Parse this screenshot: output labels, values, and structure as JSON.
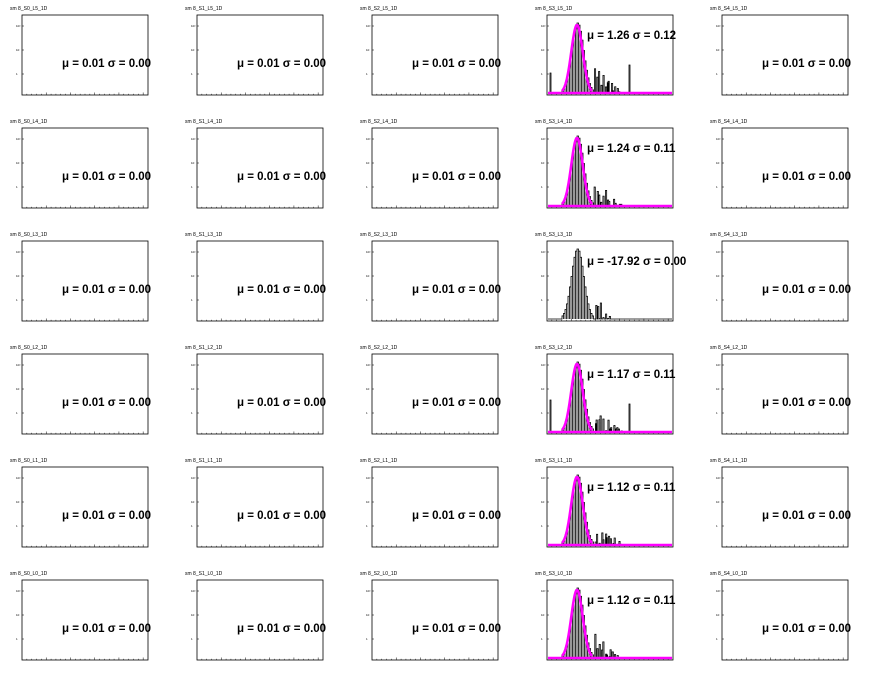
{
  "chart_data": {
    "type": "grid-of-histograms",
    "rows": 6,
    "cols": 5,
    "panels": [
      {
        "title": "sm 8_S0_L5_1D",
        "stat": "μ = 0.01 σ = 0.00",
        "has_data": false
      },
      {
        "title": "sm 8_S1_L5_1D",
        "stat": "μ = 0.01 σ = 0.00",
        "has_data": false
      },
      {
        "title": "sm 8_S2_L5_1D",
        "stat": "μ = 0.01 σ = 0.00",
        "has_data": false
      },
      {
        "title": "sm 8_S3_L5_1D",
        "stat": "μ = 1.26 σ = 0.12",
        "has_data": true,
        "fit": true,
        "variant": 0
      },
      {
        "title": "sm 8_S4_L5_1D",
        "stat": "μ = 0.01 σ = 0.00",
        "has_data": false
      },
      {
        "title": "sm 8_S0_L4_1D",
        "stat": "μ = 0.01 σ = 0.00",
        "has_data": false
      },
      {
        "title": "sm 8_S1_L4_1D",
        "stat": "μ = 0.01 σ = 0.00",
        "has_data": false
      },
      {
        "title": "sm 8_S2_L4_1D",
        "stat": "μ = 0.01 σ = 0.00",
        "has_data": false
      },
      {
        "title": "sm 8_S3_L4_1D",
        "stat": "μ = 1.24 σ = 0.11",
        "has_data": true,
        "fit": true,
        "variant": 1
      },
      {
        "title": "sm 8_S4_L4_1D",
        "stat": "μ = 0.01 σ = 0.00",
        "has_data": false
      },
      {
        "title": "sm 8_S0_L3_1D",
        "stat": "μ = 0.01 σ = 0.00",
        "has_data": false
      },
      {
        "title": "sm 8_S1_L3_1D",
        "stat": "μ = 0.01 σ = 0.00",
        "has_data": false
      },
      {
        "title": "sm 8_S2_L3_1D",
        "stat": "μ = 0.01 σ = 0.00",
        "has_data": false
      },
      {
        "title": "sm 8_S3_L3_1D",
        "stat": "μ = -17.92 σ = 0.00",
        "has_data": true,
        "fit": false,
        "variant": 2
      },
      {
        "title": "sm 8_S4_L3_1D",
        "stat": "μ = 0.01 σ = 0.00",
        "has_data": false
      },
      {
        "title": "sm 8_S0_L2_1D",
        "stat": "μ = 0.01 σ = 0.00",
        "has_data": false
      },
      {
        "title": "sm 8_S1_L2_1D",
        "stat": "μ = 0.01 σ = 0.00",
        "has_data": false
      },
      {
        "title": "sm 8_S2_L2_1D",
        "stat": "μ = 0.01 σ = 0.00",
        "has_data": false
      },
      {
        "title": "sm 8_S3_L2_1D",
        "stat": "μ = 1.17 σ = 0.11",
        "has_data": true,
        "fit": true,
        "variant": 3
      },
      {
        "title": "sm 8_S4_L2_1D",
        "stat": "μ = 0.01 σ = 0.00",
        "has_data": false
      },
      {
        "title": "sm 8_S0_L1_1D",
        "stat": "μ = 0.01 σ = 0.00",
        "has_data": false
      },
      {
        "title": "sm 8_S1_L1_1D",
        "stat": "μ = 0.01 σ = 0.00",
        "has_data": false
      },
      {
        "title": "sm 8_S2_L1_1D",
        "stat": "μ = 0.01 σ = 0.00",
        "has_data": false
      },
      {
        "title": "sm 8_S3_L1_1D",
        "stat": "μ = 1.12 σ = 0.11",
        "has_data": true,
        "fit": true,
        "variant": 4
      },
      {
        "title": "sm 8_S4_L1_1D",
        "stat": "μ = 0.01 σ = 0.00",
        "has_data": false
      },
      {
        "title": "sm 8_S0_L0_1D",
        "stat": "μ = 0.01 σ = 0.00",
        "has_data": false
      },
      {
        "title": "sm 8_S1_L0_1D",
        "stat": "μ = 0.01 σ = 0.00",
        "has_data": false
      },
      {
        "title": "sm 8_S2_L0_1D",
        "stat": "μ = 0.01 σ = 0.00",
        "has_data": false
      },
      {
        "title": "sm 8_S3_L0_1D",
        "stat": "μ = 1.12 σ = 0.11",
        "has_data": true,
        "fit": true,
        "variant": 5
      },
      {
        "title": "sm 8_S4_L0_1D",
        "stat": "μ = 0.01 σ = 0.00",
        "has_data": false
      }
    ],
    "colors": {
      "fit": "#ff00ff",
      "histogram": "#000000",
      "frame": "#000000"
    }
  }
}
